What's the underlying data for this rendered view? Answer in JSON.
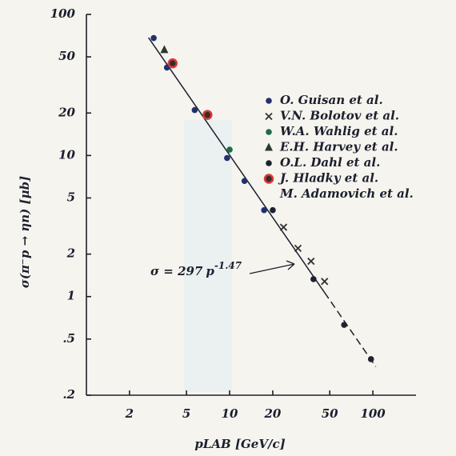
{
  "chart_data": {
    "type": "scatter",
    "xlabel": "pLAB [GeV/c]",
    "ylabel": "σ(π⁻p → ηn) [μb]",
    "xscale": "log",
    "yscale": "log",
    "xlim": [
      1,
      200
    ],
    "ylim": [
      0.2,
      100
    ],
    "xticks": [
      2,
      5,
      10,
      20,
      50,
      100
    ],
    "yticks": [
      {
        "value": 0.2,
        "label": ".2"
      },
      {
        "value": 0.5,
        "label": ".5"
      },
      1,
      2,
      5,
      10,
      20,
      50,
      100
    ],
    "legend": "upper right",
    "series": [
      {
        "name": "O. Guisan et al.",
        "color": "#23306e",
        "marker": "dot",
        "x": [
          2.95,
          3.65,
          5.7,
          9.6,
          12.7,
          17.4
        ],
        "values": [
          68,
          42,
          21,
          9.6,
          6.6,
          4.1
        ]
      },
      {
        "name": "V.N. Bolotov et al.",
        "color": "#333333",
        "marker": "cross",
        "x": [
          23.8,
          30,
          37,
          46
        ],
        "values": [
          3.1,
          2.2,
          1.78,
          1.28
        ]
      },
      {
        "name": "W.A. Wahlig et al.",
        "color": "#1d6b4a",
        "marker": "dot",
        "x": [
          10
        ],
        "values": [
          11
        ]
      },
      {
        "name": "E.H. Harvey et al.",
        "color": "#2c3a2c",
        "marker": "triangle",
        "x": [
          3.5
        ],
        "values": [
          56
        ]
      },
      {
        "name": "O.L. Dahl et al.",
        "color": "#1e2230",
        "marker": "dot",
        "x": [
          20,
          38.5,
          63,
          97
        ],
        "values": [
          4.1,
          1.33,
          0.63,
          0.36
        ]
      },
      {
        "name": "J. Hladky et al.",
        "color": "#d83a3a",
        "marker": "ring",
        "x": [
          4.0,
          7.0
        ],
        "values": [
          45,
          19.4
        ]
      },
      {
        "name": "M. Adamovich et al.",
        "color": "#d83a3a",
        "marker": "none",
        "x": [],
        "values": []
      }
    ],
    "fit": {
      "prefix": "σ = ",
      "coefficient": 297,
      "variable": "p",
      "exponent": -1.47
    }
  }
}
